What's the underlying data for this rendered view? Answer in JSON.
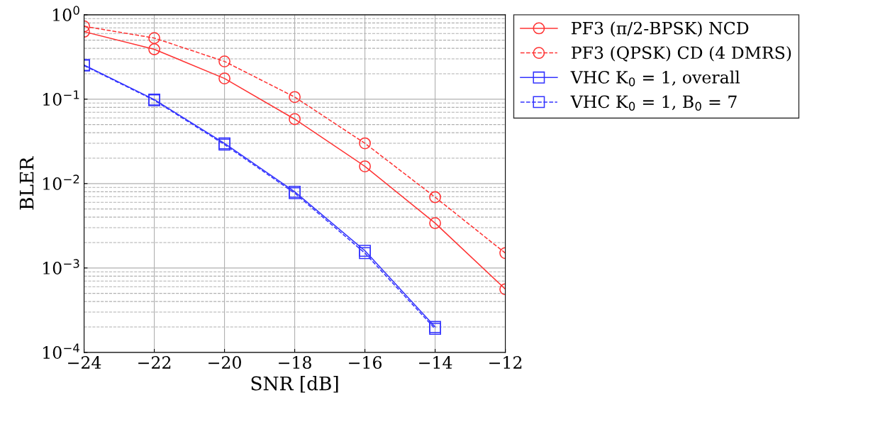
{
  "chart_data": {
    "type": "line",
    "xlabel": "SNR [dB]",
    "ylabel": "BLER",
    "log": "y",
    "grid": true,
    "legend": "right",
    "x": [
      -24,
      -22,
      -20,
      -18,
      -16,
      -14,
      -12
    ],
    "xlim": [
      -24,
      -12
    ],
    "xticks": [
      {
        "value": -24,
        "label": "−24"
      },
      {
        "value": -22,
        "label": "−22"
      },
      {
        "value": -20,
        "label": "−20"
      },
      {
        "value": -18,
        "label": "−18"
      },
      {
        "value": -16,
        "label": "−16"
      },
      {
        "value": -14,
        "label": "−14"
      },
      {
        "value": -12,
        "label": "−12"
      }
    ],
    "ylim": [
      0.0001,
      1
    ],
    "yticks": [
      {
        "value": 0.0001,
        "label": "10$^{−4}$"
      },
      {
        "value": 0.001,
        "label": "10$^{−3}$"
      },
      {
        "value": 0.01,
        "label": "10$^{−2}$"
      },
      {
        "value": 0.1,
        "label": "10$^{−1}$"
      },
      {
        "value": 1,
        "label": "10$^{0}$"
      }
    ],
    "series": [
      {
        "name": "PF3 (π/2-BPSK) NCD",
        "color": "#ff3333",
        "line_style": "solid",
        "marker": "circle",
        "values": [
          0.63,
          0.39,
          0.176,
          0.058,
          0.016,
          0.0034,
          0.00056
        ]
      },
      {
        "name": "PF3 (QPSK) CD (4 DMRS)",
        "color": "#ff3333",
        "line_style": "dashed",
        "marker": "circle",
        "values": [
          0.73,
          0.53,
          0.28,
          0.106,
          0.03,
          0.0069,
          0.0015
        ]
      },
      {
        "name": "VHC K$_{0}$ = 1, overall",
        "color": "#3333ff",
        "line_style": "solid",
        "marker": "square",
        "values": [
          0.254,
          0.099,
          0.03,
          0.008,
          0.0016,
          0.0002,
          null
        ]
      },
      {
        "name": "VHC K$_{0}$ = 1, B$_{0}$ = 7",
        "color": "#3333ff",
        "line_style": "dashed",
        "marker": "square",
        "values": [
          0.25,
          0.097,
          0.029,
          0.0077,
          0.0015,
          0.00019,
          null
        ]
      }
    ]
  }
}
